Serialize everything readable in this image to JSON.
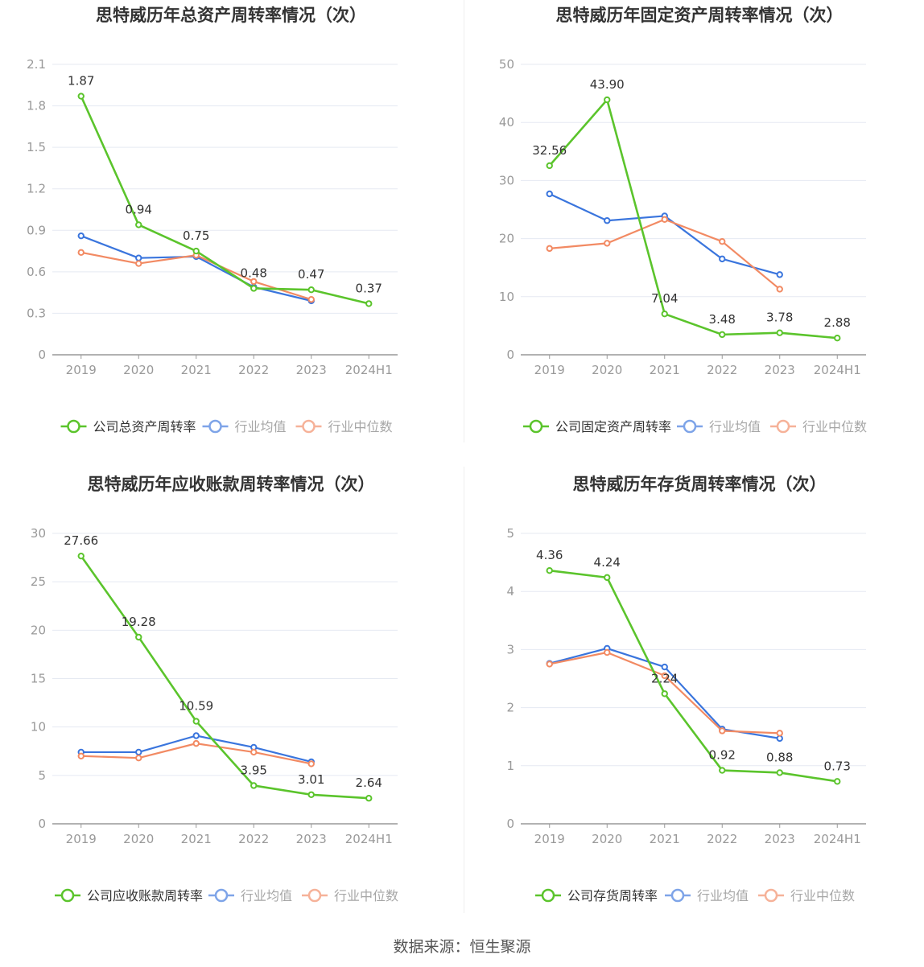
{
  "footer": "数据来源：恒生聚源",
  "colors": {
    "company": "#5bc42c",
    "avg": "#3a75dd",
    "median": "#f28a63",
    "grid": "#e5e9f2",
    "axis": "#999999",
    "label": "#333333",
    "title": "#333333"
  },
  "chart_data": [
    {
      "type": "line",
      "title": "思特威历年总资产周转率情况（次）",
      "categories": [
        "2019",
        "2020",
        "2021",
        "2022",
        "2023",
        "2024H1"
      ],
      "ylim": [
        0,
        2.1
      ],
      "yticks": [
        "0",
        "0.3",
        "0.6",
        "0.9",
        "1.2",
        "1.5",
        "1.8",
        "2.1"
      ],
      "ytick_values": [
        0,
        0.3,
        0.6,
        0.9,
        1.2,
        1.5,
        1.8,
        2.1
      ],
      "series": [
        {
          "name": "公司总资产周转率",
          "key": "company",
          "values": [
            1.87,
            0.94,
            0.75,
            0.48,
            0.47,
            0.37
          ],
          "labels": [
            "1.87",
            "0.94",
            "0.75",
            "0.48",
            "0.47",
            "0.37"
          ]
        },
        {
          "name": "行业均值",
          "key": "avg",
          "values": [
            0.86,
            0.7,
            0.71,
            0.49,
            0.39,
            null
          ]
        },
        {
          "name": "行业中位数",
          "key": "median",
          "values": [
            0.74,
            0.66,
            0.72,
            0.53,
            0.4,
            null
          ]
        }
      ]
    },
    {
      "type": "line",
      "title": "思特威历年固定资产周转率情况（次）",
      "categories": [
        "2019",
        "2020",
        "2021",
        "2022",
        "2023",
        "2024H1"
      ],
      "ylim": [
        0,
        50
      ],
      "yticks": [
        "0",
        "10",
        "20",
        "30",
        "40",
        "50"
      ],
      "ytick_values": [
        0,
        10,
        20,
        30,
        40,
        50
      ],
      "series": [
        {
          "name": "公司固定资产周转率",
          "key": "company",
          "values": [
            32.56,
            43.9,
            7.04,
            3.48,
            3.78,
            2.88
          ],
          "labels": [
            "32.56",
            "43.90",
            "7.04",
            "3.48",
            "3.78",
            "2.88"
          ]
        },
        {
          "name": "行业均值",
          "key": "avg",
          "values": [
            27.7,
            23.1,
            23.9,
            16.5,
            13.8,
            null
          ]
        },
        {
          "name": "行业中位数",
          "key": "median",
          "values": [
            18.3,
            19.2,
            23.3,
            19.5,
            11.3,
            null
          ]
        }
      ]
    },
    {
      "type": "line",
      "title": "思特威历年应收账款周转率情况（次）",
      "categories": [
        "2019",
        "2020",
        "2021",
        "2022",
        "2023",
        "2024H1"
      ],
      "ylim": [
        0,
        30
      ],
      "yticks": [
        "0",
        "5",
        "10",
        "15",
        "20",
        "25",
        "30"
      ],
      "ytick_values": [
        0,
        5,
        10,
        15,
        20,
        25,
        30
      ],
      "series": [
        {
          "name": "公司应收账款周转率",
          "key": "company",
          "values": [
            27.66,
            19.28,
            10.59,
            3.95,
            3.01,
            2.64
          ],
          "labels": [
            "27.66",
            "19.28",
            "10.59",
            "3.95",
            "3.01",
            "2.64"
          ]
        },
        {
          "name": "行业均值",
          "key": "avg",
          "values": [
            7.4,
            7.4,
            9.1,
            7.9,
            6.4,
            null
          ]
        },
        {
          "name": "行业中位数",
          "key": "median",
          "values": [
            7.0,
            6.8,
            8.3,
            7.4,
            6.2,
            null
          ]
        }
      ]
    },
    {
      "type": "line",
      "title": "思特威历年存货周转率情况（次）",
      "categories": [
        "2019",
        "2020",
        "2021",
        "2022",
        "2023",
        "2024H1"
      ],
      "ylim": [
        0,
        5
      ],
      "yticks": [
        "0",
        "1",
        "2",
        "3",
        "4",
        "5"
      ],
      "ytick_values": [
        0,
        1,
        2,
        3,
        4,
        5
      ],
      "series": [
        {
          "name": "公司存货周转率",
          "key": "company",
          "values": [
            4.36,
            4.24,
            2.24,
            0.92,
            0.88,
            0.73
          ],
          "labels": [
            "4.36",
            "4.24",
            "2.24",
            "0.92",
            "0.88",
            "0.73"
          ]
        },
        {
          "name": "行业均值",
          "key": "avg",
          "values": [
            2.76,
            3.02,
            2.7,
            1.63,
            1.47,
            null
          ]
        },
        {
          "name": "行业中位数",
          "key": "median",
          "values": [
            2.75,
            2.95,
            2.55,
            1.6,
            1.56,
            null
          ]
        }
      ]
    }
  ]
}
